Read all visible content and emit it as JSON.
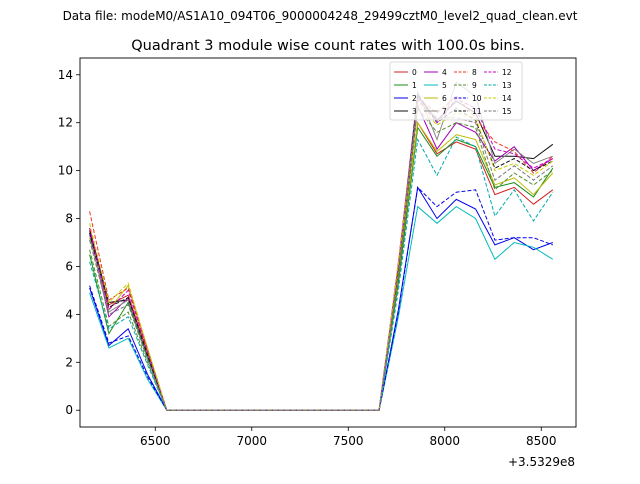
{
  "figure": {
    "suptitle": "Data file: modeM0/AS1A10_094T06_9000004248_29499cztM0_level2_quad_clean.evt",
    "title": "Quadrant 3 module wise count rates with 100.0s bins.",
    "x_offset_label": "+3.5329e8"
  },
  "chart_data": {
    "type": "line",
    "title": "Quadrant 3 module wise count rates with 100.0s bins.",
    "xlabel": "",
    "ylabel": "",
    "x_offset": 353290000,
    "xlim": [
      6110,
      8680
    ],
    "ylim": [
      -0.7,
      14.7
    ],
    "xticks": [
      6500,
      7000,
      7500,
      8000,
      8500
    ],
    "yticks": [
      0,
      2,
      4,
      6,
      8,
      10,
      12,
      14
    ],
    "xtick_labels": [
      "6500",
      "7000",
      "7500",
      "8000",
      "8500"
    ],
    "ytick_labels": [
      "0",
      "2",
      "4",
      "6",
      "8",
      "10",
      "12",
      "14"
    ],
    "grid": false,
    "legend_placement": "top-right",
    "legend_columns": 4,
    "x": [
      6160,
      6260,
      6360,
      6460,
      6560,
      6660,
      6760,
      6860,
      6960,
      7060,
      7160,
      7260,
      7360,
      7460,
      7560,
      7660,
      7760,
      7860,
      7960,
      8060,
      8160,
      8260,
      8360,
      8460,
      8560
    ],
    "series": [
      {
        "name": "0",
        "color": "#d62020",
        "dash": "solid",
        "values": [
          7.6,
          4.4,
          4.8,
          2.4,
          0,
          0,
          0,
          0,
          0,
          0,
          0,
          0,
          0,
          0,
          0,
          0,
          5.5,
          12.0,
          10.7,
          11.2,
          10.9,
          9.0,
          9.3,
          8.6,
          9.2
        ]
      },
      {
        "name": "1",
        "color": "#1a8c1a",
        "dash": "solid",
        "values": [
          6.5,
          3.2,
          4.5,
          2.2,
          0,
          0,
          0,
          0,
          0,
          0,
          0,
          0,
          0,
          0,
          0,
          0,
          5.3,
          11.8,
          10.6,
          11.3,
          11.0,
          9.3,
          9.5,
          8.9,
          10.1
        ]
      },
      {
        "name": "2",
        "color": "#0000ee",
        "dash": "solid",
        "values": [
          5.1,
          2.7,
          3.4,
          1.5,
          0,
          0,
          0,
          0,
          0,
          0,
          0,
          0,
          0,
          0,
          0,
          0,
          4.2,
          9.3,
          8.0,
          8.8,
          8.4,
          6.9,
          7.2,
          6.7,
          7.0
        ]
      },
      {
        "name": "3",
        "color": "#111111",
        "dash": "solid",
        "values": [
          7.5,
          4.5,
          4.6,
          2.3,
          0,
          0,
          0,
          0,
          0,
          0,
          0,
          0,
          0,
          0,
          0,
          0,
          6.0,
          13.1,
          12.1,
          12.9,
          12.4,
          10.6,
          10.6,
          10.5,
          11.1
        ]
      },
      {
        "name": "4",
        "color": "#a000b0",
        "dash": "solid",
        "values": [
          7.4,
          3.9,
          4.7,
          2.3,
          0,
          0,
          0,
          0,
          0,
          0,
          0,
          0,
          0,
          0,
          0,
          0,
          5.8,
          12.7,
          10.9,
          12.0,
          11.6,
          10.4,
          11.0,
          10.0,
          10.5
        ]
      },
      {
        "name": "5",
        "color": "#00bbbb",
        "dash": "solid",
        "values": [
          4.9,
          2.6,
          3.0,
          1.3,
          0,
          0,
          0,
          0,
          0,
          0,
          0,
          0,
          0,
          0,
          0,
          0,
          3.9,
          8.5,
          7.8,
          8.5,
          8.0,
          6.3,
          7.0,
          6.8,
          6.3
        ]
      },
      {
        "name": "6",
        "color": "#bbbb00",
        "dash": "solid",
        "values": [
          7.2,
          4.2,
          5.2,
          2.6,
          0,
          0,
          0,
          0,
          0,
          0,
          0,
          0,
          0,
          0,
          0,
          0,
          5.7,
          12.0,
          10.8,
          11.5,
          11.3,
          9.4,
          9.7,
          9.0,
          9.9
        ]
      },
      {
        "name": "7",
        "color": "#888888",
        "dash": "solid",
        "values": [
          7.3,
          4.1,
          4.6,
          2.3,
          0,
          0,
          0,
          0,
          0,
          0,
          0,
          0,
          0,
          0,
          0,
          0,
          6.1,
          13.3,
          11.3,
          13.7,
          13.1,
          10.3,
          10.9,
          10.3,
          10.6
        ]
      },
      {
        "name": "8",
        "color": "#ee3322",
        "dash": "dashed",
        "values": [
          8.3,
          4.6,
          5.1,
          2.5,
          0,
          0,
          0,
          0,
          0,
          0,
          0,
          0,
          0,
          0,
          0,
          0,
          6.2,
          13.0,
          12.4,
          13.1,
          12.2,
          11.2,
          10.8,
          9.9,
          10.6
        ]
      },
      {
        "name": "9",
        "color": "#558b2f",
        "dash": "dashed",
        "values": [
          6.7,
          3.5,
          4.1,
          2.0,
          0,
          0,
          0,
          0,
          0,
          0,
          0,
          0,
          0,
          0,
          0,
          0,
          5.4,
          12.6,
          11.6,
          12.0,
          11.8,
          9.2,
          9.9,
          9.4,
          10.0
        ]
      },
      {
        "name": "10",
        "color": "#0000ee",
        "dash": "dashed",
        "values": [
          5.2,
          2.8,
          3.1,
          1.4,
          0,
          0,
          0,
          0,
          0,
          0,
          0,
          0,
          0,
          0,
          0,
          0,
          4.1,
          9.3,
          8.5,
          9.1,
          9.2,
          7.1,
          7.2,
          7.2,
          6.9
        ]
      },
      {
        "name": "11",
        "color": "#111111",
        "dash": "dashed",
        "values": [
          7.4,
          4.3,
          4.7,
          2.3,
          0,
          0,
          0,
          0,
          0,
          0,
          0,
          0,
          0,
          0,
          0,
          0,
          5.9,
          13.2,
          12.0,
          12.6,
          12.1,
          10.1,
          10.5,
          10.0,
          10.4
        ]
      },
      {
        "name": "12",
        "color": "#cc00cc",
        "dash": "dashed",
        "values": [
          7.6,
          4.2,
          5.0,
          2.5,
          0,
          0,
          0,
          0,
          0,
          0,
          0,
          0,
          0,
          0,
          0,
          0,
          6.1,
          13.0,
          12.0,
          13.0,
          12.6,
          10.9,
          10.7,
          10.1,
          10.5
        ]
      },
      {
        "name": "13",
        "color": "#00aaaa",
        "dash": "dashed",
        "values": [
          6.2,
          3.4,
          3.9,
          1.9,
          0,
          0,
          0,
          0,
          0,
          0,
          0,
          0,
          0,
          0,
          0,
          0,
          5.0,
          11.3,
          9.8,
          11.4,
          11.0,
          8.1,
          9.2,
          7.9,
          9.1
        ]
      },
      {
        "name": "14",
        "color": "#cccc00",
        "dash": "dashed",
        "values": [
          7.8,
          4.5,
          5.3,
          2.6,
          0,
          0,
          0,
          0,
          0,
          0,
          0,
          0,
          0,
          0,
          0,
          0,
          6.1,
          12.8,
          11.9,
          12.4,
          12.2,
          10.0,
          10.3,
          9.8,
          10.4
        ]
      },
      {
        "name": "15",
        "color": "#777777",
        "dash": "dashed",
        "values": [
          7.1,
          4.0,
          4.4,
          2.1,
          0,
          0,
          0,
          0,
          0,
          0,
          0,
          0,
          0,
          0,
          0,
          0,
          5.6,
          12.9,
          12.2,
          12.2,
          12.0,
          9.6,
          10.2,
          9.6,
          10.2
        ]
      }
    ]
  }
}
